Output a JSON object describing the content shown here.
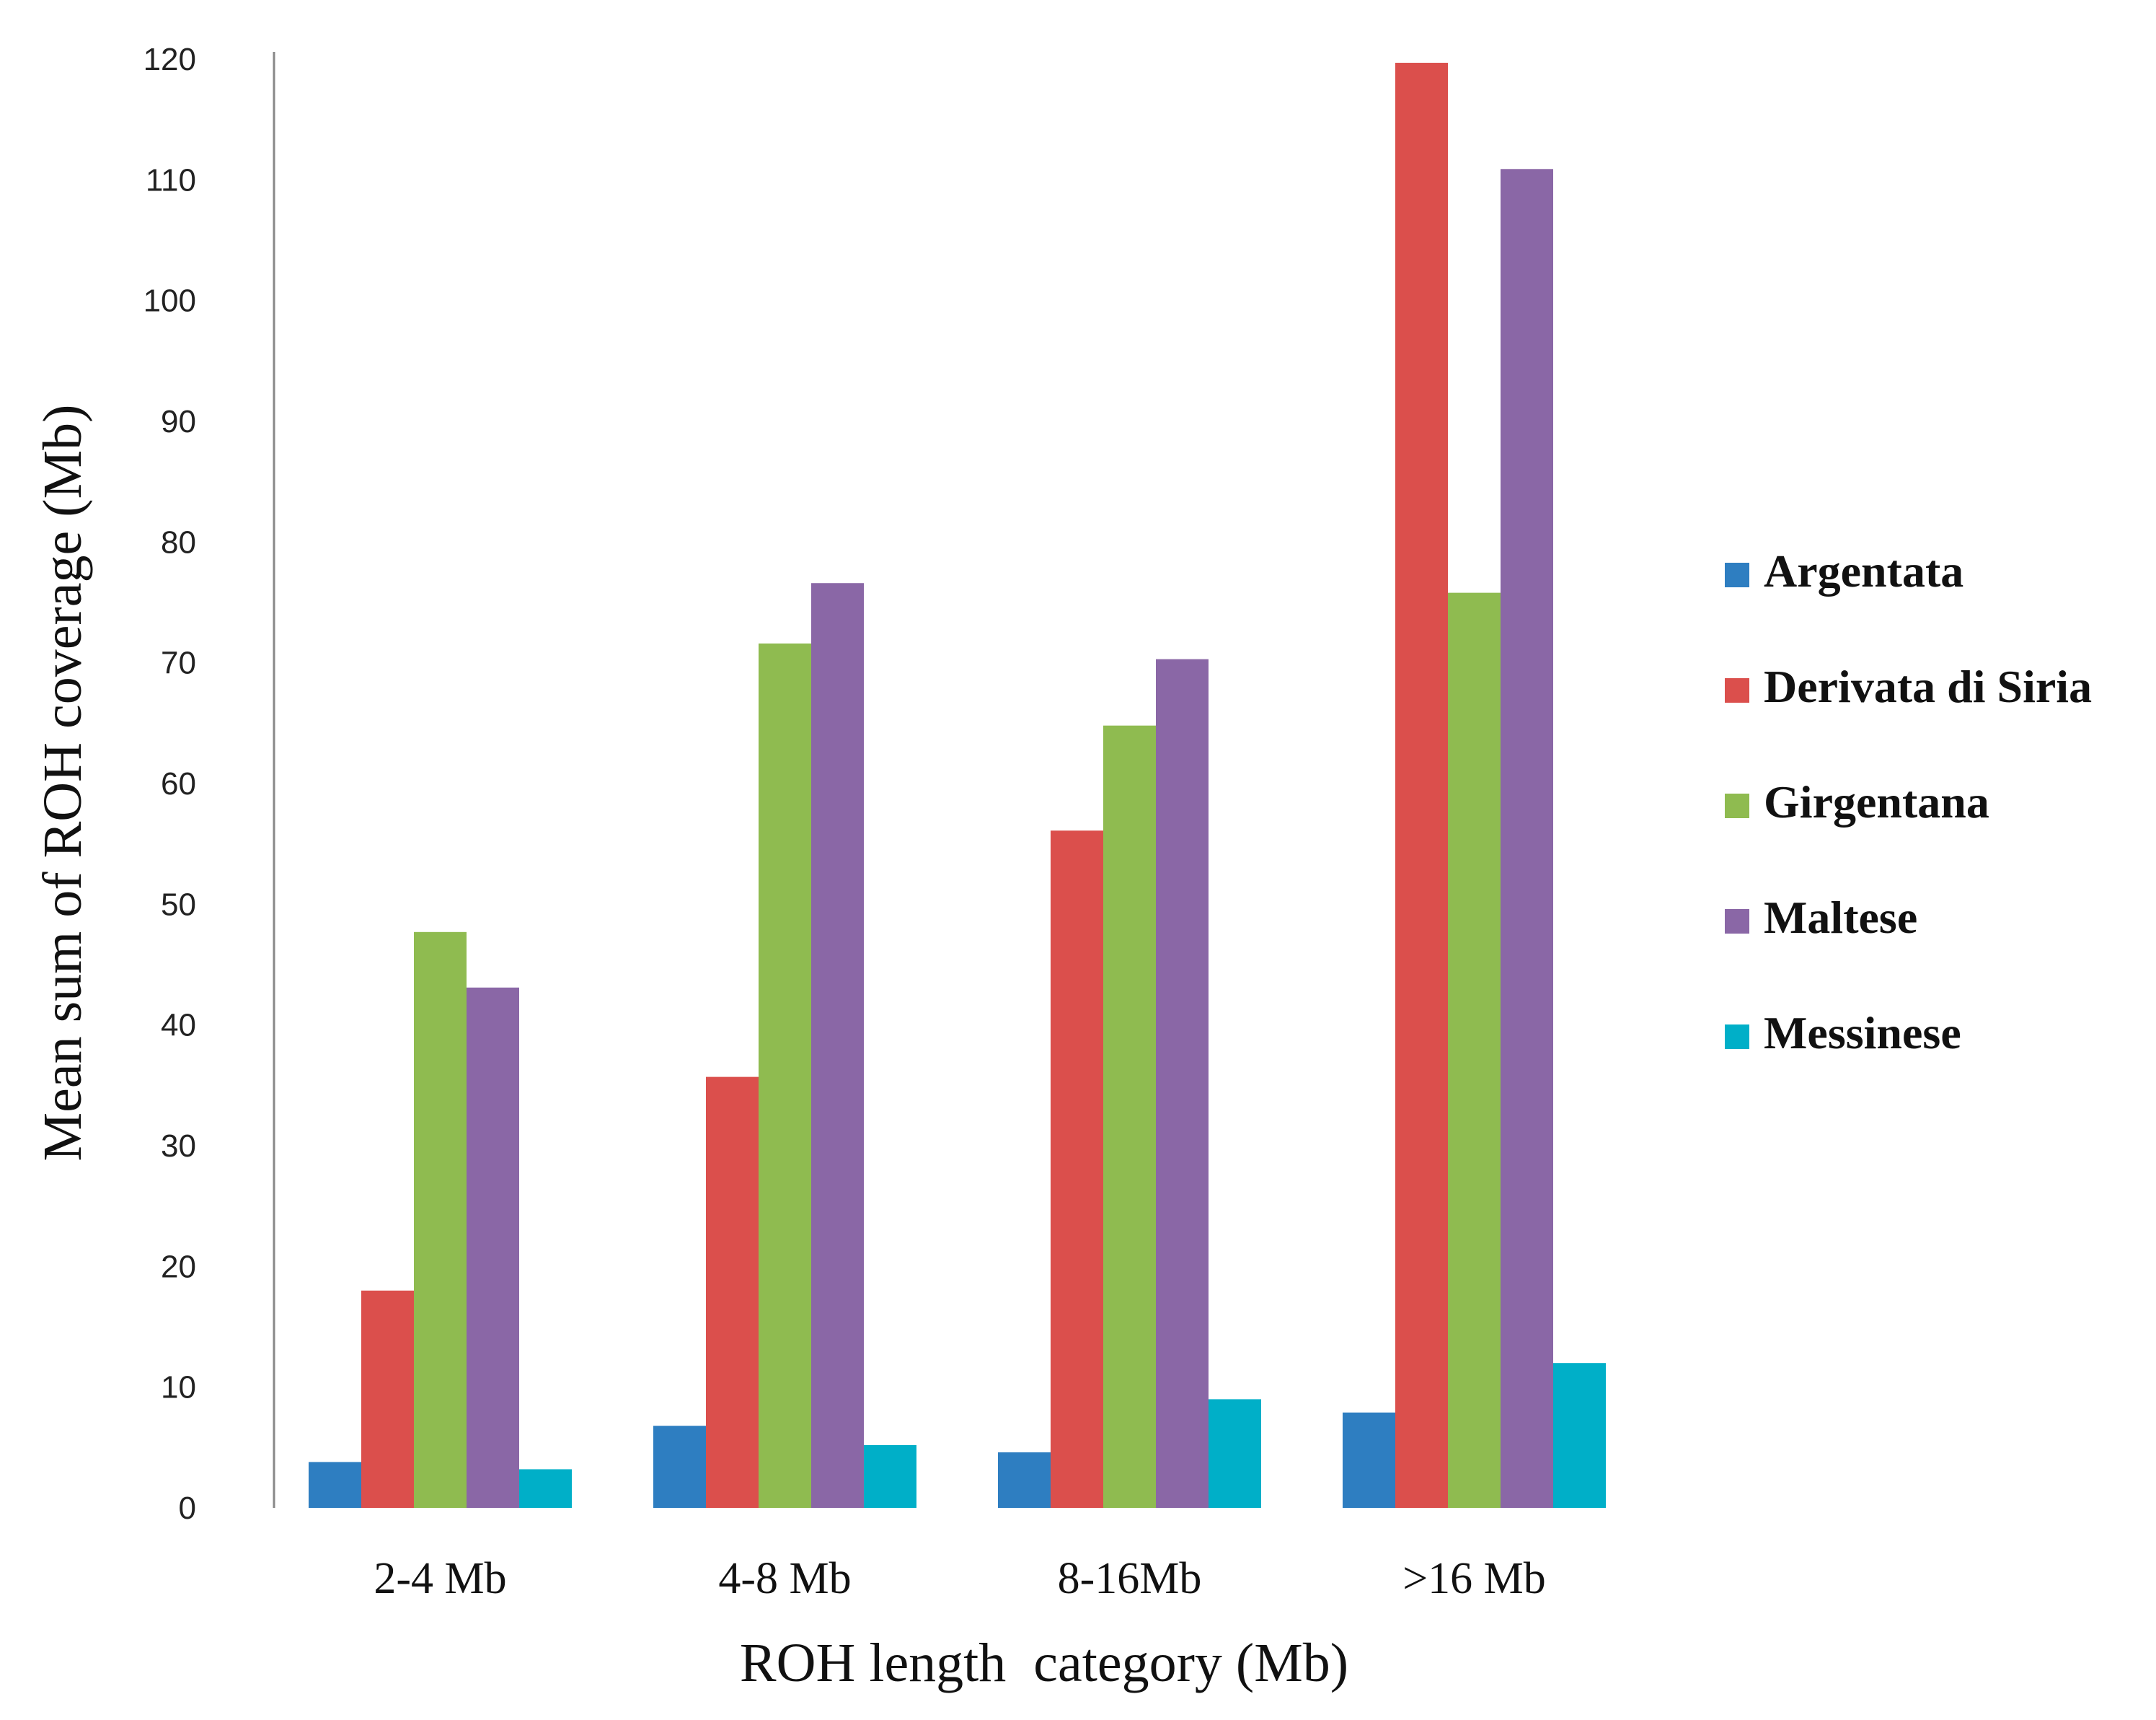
{
  "chart_data": {
    "type": "bar",
    "title": "",
    "xlabel": "ROH length  category (Mb)",
    "ylabel": "Mean sum of ROH coverage (Mb)",
    "ylim": [
      0,
      120
    ],
    "yticks": [
      0,
      10,
      20,
      30,
      40,
      50,
      60,
      70,
      80,
      90,
      100,
      110,
      120
    ],
    "grid": false,
    "legend_position": "right",
    "categories": [
      "2-4 Mb",
      "4-8 Mb",
      "8-16Mb",
      ">16 Mb"
    ],
    "series": [
      {
        "name": "Argentata",
        "color": "#2E7EC1",
        "values": [
          3.8,
          6.8,
          4.6,
          7.9
        ]
      },
      {
        "name": "Derivata di Siria",
        "color": "#DB4F4C",
        "values": [
          18.0,
          35.7,
          56.1,
          119.7
        ]
      },
      {
        "name": "Girgentana",
        "color": "#8FBB50",
        "values": [
          47.7,
          71.6,
          64.8,
          75.8
        ]
      },
      {
        "name": "Maltese",
        "color": "#8A67A6",
        "values": [
          43.1,
          76.6,
          70.3,
          110.9
        ]
      },
      {
        "name": "Messinese",
        "color": "#00AFC8",
        "values": [
          3.2,
          5.2,
          9.0,
          12.0
        ]
      }
    ]
  }
}
